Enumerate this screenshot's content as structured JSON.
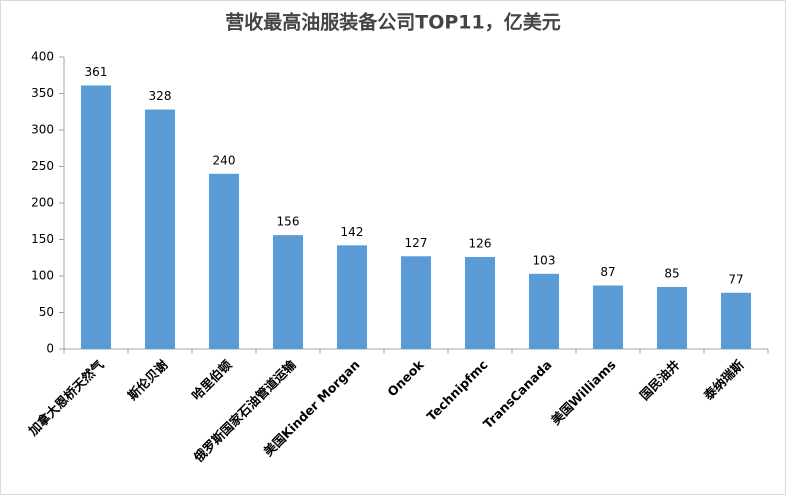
{
  "chart_data": {
    "type": "bar",
    "title": "营收最高油服装备公司TOP11，亿美元",
    "categories": [
      "加拿大恩桥天然气",
      "斯伦贝谢",
      "哈里伯顿",
      "俄罗斯国家石油管道运输",
      "美国Kinder Morgan",
      "Oneok",
      "Technipfmc",
      "TransCanada",
      "美国Williams",
      "国民油井",
      "泰纳瑞斯"
    ],
    "values": [
      361,
      328,
      240,
      156,
      142,
      127,
      126,
      103,
      87,
      85,
      77
    ],
    "color": "#5b9bd5",
    "ylim": [
      0,
      400
    ],
    "yticks": [
      0,
      50,
      100,
      150,
      200,
      250,
      300,
      350,
      400
    ],
    "grid": false
  }
}
